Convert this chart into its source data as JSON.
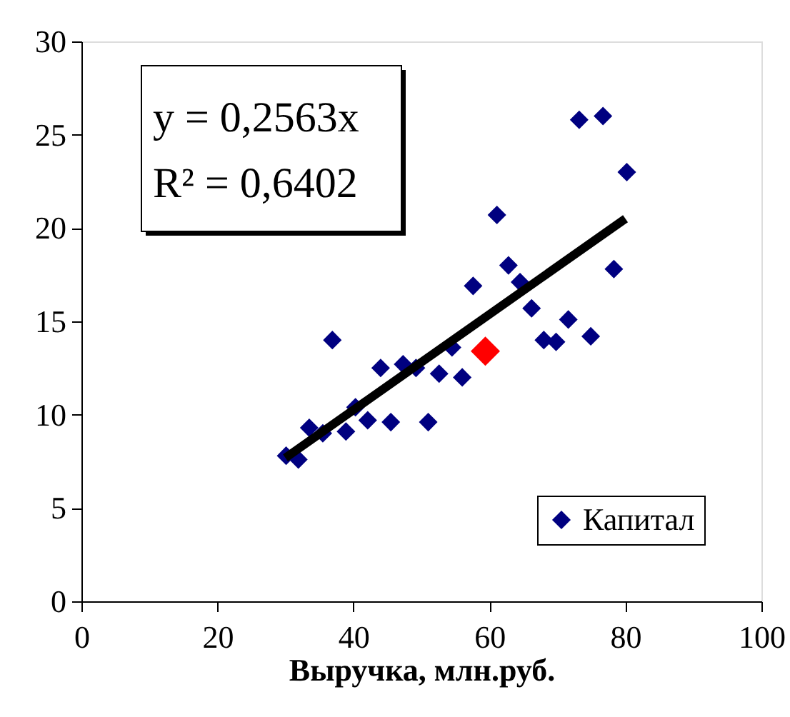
{
  "chart_data": {
    "type": "scatter",
    "xlabel": "Выручка, млн.руб.",
    "xlim": [
      0,
      100
    ],
    "xticks": [
      0,
      20,
      40,
      60,
      80,
      100
    ],
    "ylim": [
      0,
      30
    ],
    "yticks": [
      0,
      5,
      10,
      15,
      20,
      25,
      30
    ],
    "grid": false,
    "legend": "bottom right",
    "marker": "diamond",
    "annotations": [
      "y = 0,2563x",
      "R² = 0,6402"
    ],
    "series": [
      {
        "name": "Капитал",
        "color": "#000080",
        "x": [
          30.1,
          31.9,
          33.5,
          35.5,
          36.9,
          38.9,
          40.3,
          42.1,
          44.0,
          45.5,
          47.3,
          49.2,
          51.0,
          52.6,
          54.5,
          56.0,
          57.6,
          61.1,
          62.8,
          64.5,
          66.2,
          68.0,
          69.8,
          71.6,
          73.2,
          74.9,
          76.7,
          78.3,
          80.2
        ],
        "values": [
          7.8,
          7.6,
          9.3,
          9.0,
          14.0,
          9.1,
          10.4,
          9.7,
          12.5,
          9.6,
          12.7,
          12.5,
          9.6,
          12.2,
          13.6,
          12.0,
          16.9,
          20.7,
          18.0,
          17.1,
          15.7,
          14.0,
          13.9,
          15.1,
          25.8,
          14.2,
          26.0,
          17.8,
          23.0
        ]
      },
      {
        "color": "#ff0000",
        "x": [
          59.4
        ],
        "values": [
          13.4
        ]
      },
      {
        "type": "line",
        "marker": "none",
        "line_style": "solid",
        "color": "#000000",
        "x": [
          30,
          80
        ],
        "values": [
          7.69,
          20.5
        ]
      }
    ]
  }
}
